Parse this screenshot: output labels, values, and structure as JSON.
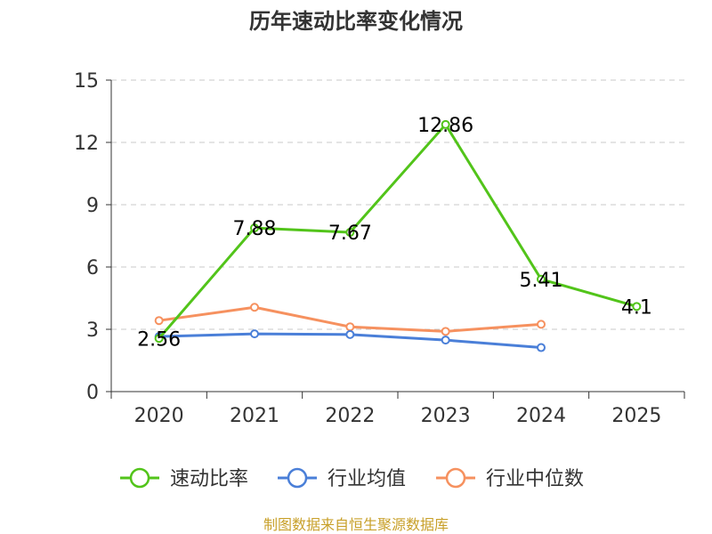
{
  "chart_data": {
    "type": "line",
    "title": "历年速动比率变化情况",
    "categories": [
      "2020",
      "2021",
      "2022",
      "2023",
      "2024",
      "2025"
    ],
    "ylim": [
      0,
      15
    ],
    "yticks": [
      0,
      3,
      6,
      9,
      12,
      15
    ],
    "grid": true,
    "legend_position": "bottom",
    "series": [
      {
        "name": "速动比率",
        "color": "#52c41a",
        "values": [
          2.56,
          7.88,
          7.67,
          12.86,
          5.41,
          4.1
        ],
        "labels": [
          "2.56",
          "7.88",
          "7.67",
          "12.86",
          "5.41",
          "4.1"
        ]
      },
      {
        "name": "行业均值",
        "color": "#4a7fd8",
        "values": [
          2.65,
          2.78,
          2.75,
          2.48,
          2.12,
          null
        ]
      },
      {
        "name": "行业中位数",
        "color": "#f6915f",
        "values": [
          3.42,
          4.06,
          3.12,
          2.9,
          3.24,
          null
        ]
      }
    ],
    "source": "制图数据来自恒生聚源数据库"
  }
}
